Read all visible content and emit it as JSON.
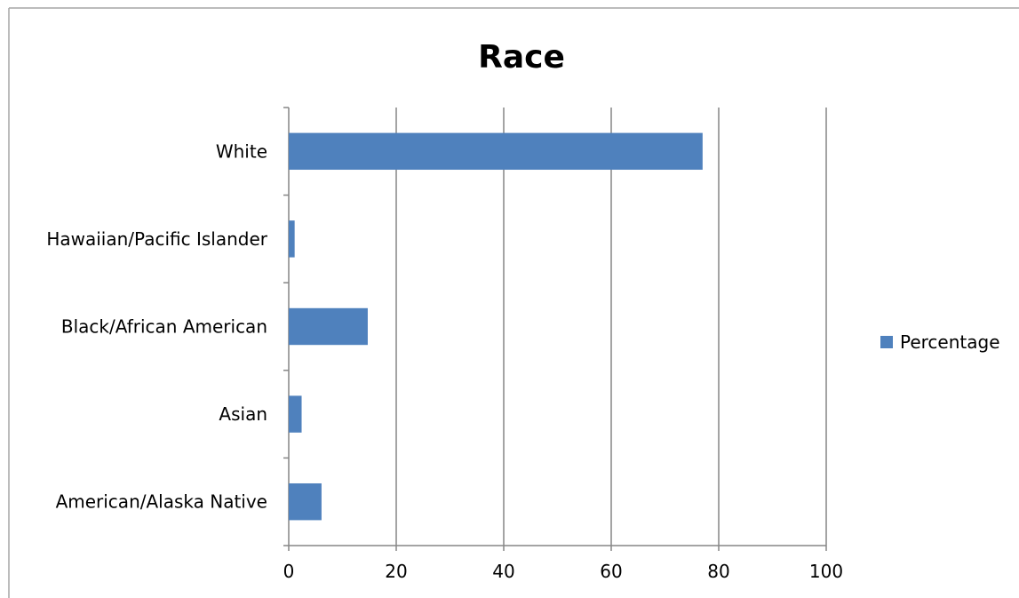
{
  "chart_data": {
    "type": "bar",
    "orientation": "horizontal",
    "title": "Race",
    "categories": [
      "American/Alaska Native",
      "Asian",
      "Black/African American",
      "Hawaiian/Pacific Islander",
      "White"
    ],
    "series": [
      {
        "name": "Percentage",
        "color": "#4f81bd",
        "values": [
          6.1,
          2.4,
          14.7,
          1.1,
          77
        ]
      }
    ],
    "xlim": [
      0,
      100
    ],
    "xticks": [
      0,
      20,
      40,
      60,
      80,
      100
    ],
    "xlabel": "",
    "ylabel": "",
    "grid": true,
    "legend": "right"
  }
}
